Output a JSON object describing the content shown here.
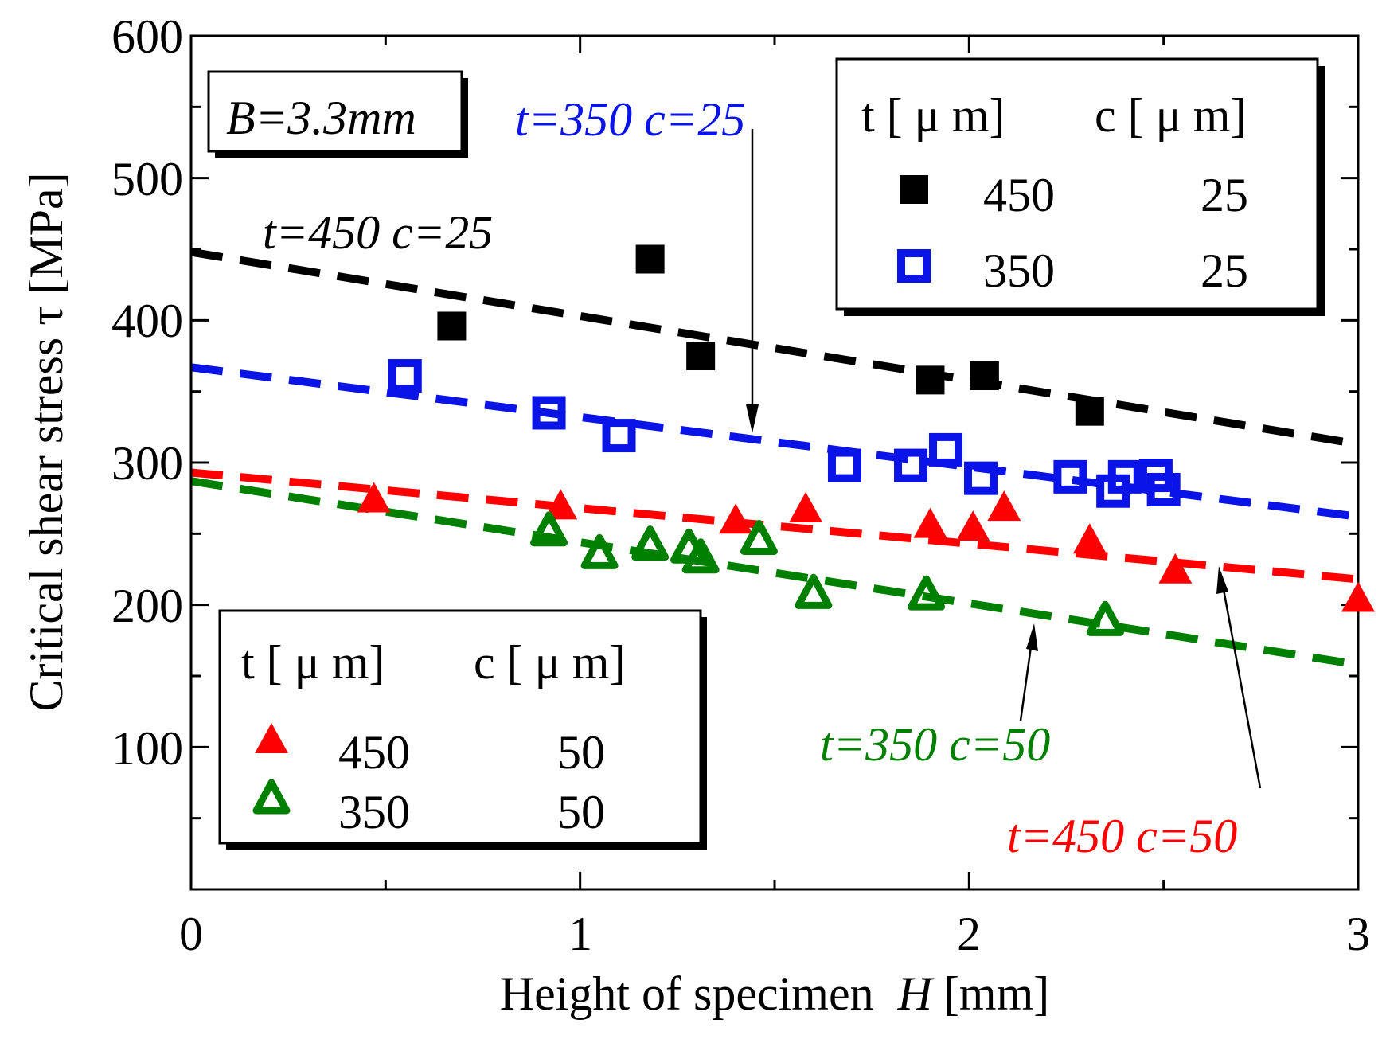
{
  "chart_data": {
    "type": "scatter",
    "title": "",
    "xlabel": "Height of specimen",
    "xlabel_var": "H",
    "xlabel_unit": "[mm]",
    "ylabel": "Critical shear stress τ [MPa]",
    "xlim": [
      0,
      3
    ],
    "ylim": [
      0,
      600
    ],
    "x_ticks": [
      "0",
      "1",
      "2",
      "3"
    ],
    "y_ticks": [
      "100",
      "200",
      "300",
      "400",
      "500",
      "600"
    ],
    "condition_label": "B=3.3mm",
    "legend_upper": {
      "header_t": "t [ μ m]",
      "header_c": "c [ μ m]",
      "rows": [
        {
          "t": "450",
          "c": "25"
        },
        {
          "t": "350",
          "c": "25"
        }
      ]
    },
    "legend_lower": {
      "header_t": "t [ μ m]",
      "header_c": "c [ μ m]",
      "rows": [
        {
          "t": "450",
          "c": "50"
        },
        {
          "t": "350",
          "c": "50"
        }
      ]
    },
    "annotations": [
      "t=450 c=25",
      "t=350 c=25",
      "t=350 c=50",
      "t=450 c=50"
    ],
    "series": [
      {
        "name": "t=450 c=25",
        "marker": "filled-square",
        "color": "#000000",
        "fit": [
          448,
          313
        ],
        "points": [
          [
            0.67,
            396
          ],
          [
            1.18,
            443
          ],
          [
            1.31,
            375
          ],
          [
            1.9,
            358
          ],
          [
            2.04,
            361
          ],
          [
            2.31,
            336
          ]
        ]
      },
      {
        "name": "t=350 c=25",
        "marker": "open-square",
        "color": "#0a14e6",
        "fit": [
          367,
          262
        ],
        "points": [
          [
            0.55,
            361
          ],
          [
            0.92,
            335
          ],
          [
            1.1,
            319
          ],
          [
            1.68,
            298
          ],
          [
            1.85,
            298
          ],
          [
            1.94,
            309
          ],
          [
            2.03,
            289
          ],
          [
            2.26,
            290
          ],
          [
            2.37,
            280
          ],
          [
            2.4,
            290
          ],
          [
            2.48,
            291
          ],
          [
            2.5,
            281
          ]
        ]
      },
      {
        "name": "t=450 c=50",
        "marker": "filled-triangle",
        "color": "#ff0000",
        "fit": [
          293,
          218
        ],
        "points": [
          [
            0.47,
            274
          ],
          [
            0.95,
            269
          ],
          [
            1.4,
            259
          ],
          [
            1.58,
            267
          ],
          [
            1.9,
            256
          ],
          [
            2.01,
            254
          ],
          [
            2.09,
            268
          ],
          [
            2.31,
            245
          ],
          [
            2.53,
            224
          ],
          [
            3.0,
            204
          ]
        ]
      },
      {
        "name": "t=350 c=50",
        "marker": "open-triangle",
        "color": "#008000",
        "fit": [
          287,
          158
        ],
        "points": [
          [
            0.92,
            252
          ],
          [
            1.05,
            236
          ],
          [
            1.18,
            242
          ],
          [
            1.28,
            240
          ],
          [
            1.31,
            233
          ],
          [
            1.46,
            246
          ],
          [
            1.6,
            208
          ],
          [
            1.89,
            207
          ],
          [
            2.35,
            189
          ]
        ]
      }
    ]
  }
}
